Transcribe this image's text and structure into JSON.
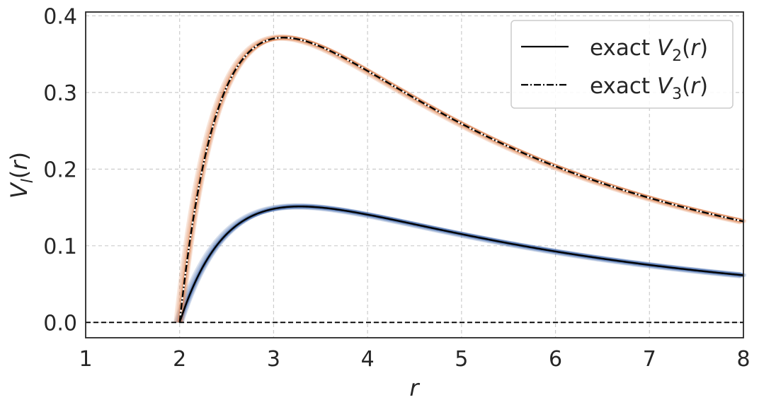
{
  "chart_data": {
    "type": "line",
    "xlabel": "r",
    "ylabel": "V_l(r)",
    "xlim": [
      1,
      8
    ],
    "ylim": [
      -0.02,
      0.405
    ],
    "xticks": [
      1,
      2,
      3,
      4,
      5,
      6,
      7,
      8
    ],
    "yticks": [
      0.0,
      0.1,
      0.2,
      0.3,
      0.4
    ],
    "x_tick_labels": [
      "1",
      "2",
      "3",
      "4",
      "5",
      "6",
      "7",
      "8"
    ],
    "y_tick_labels": [
      "0.0",
      "0.1",
      "0.2",
      "0.3",
      "0.4"
    ],
    "grid": true,
    "legend_position": "top-right",
    "reference_line": {
      "y": 0.0,
      "style": "dashed",
      "color": "#000000"
    },
    "series": [
      {
        "name": "exact V_2(r)",
        "legend_label": {
          "prefix": "exact ",
          "symbol": "V",
          "sub": "2",
          "suffix": "(r)"
        },
        "l": 2,
        "style": "solid",
        "color": "#000000",
        "band_color": "#4c72b0"
      },
      {
        "name": "exact V_3(r)",
        "legend_label": {
          "prefix": "exact ",
          "symbol": "V",
          "sub": "3",
          "suffix": "(r)"
        },
        "l": 3,
        "style": "dashdot",
        "color": "#000000",
        "band_color": "#dd8452"
      }
    ]
  }
}
